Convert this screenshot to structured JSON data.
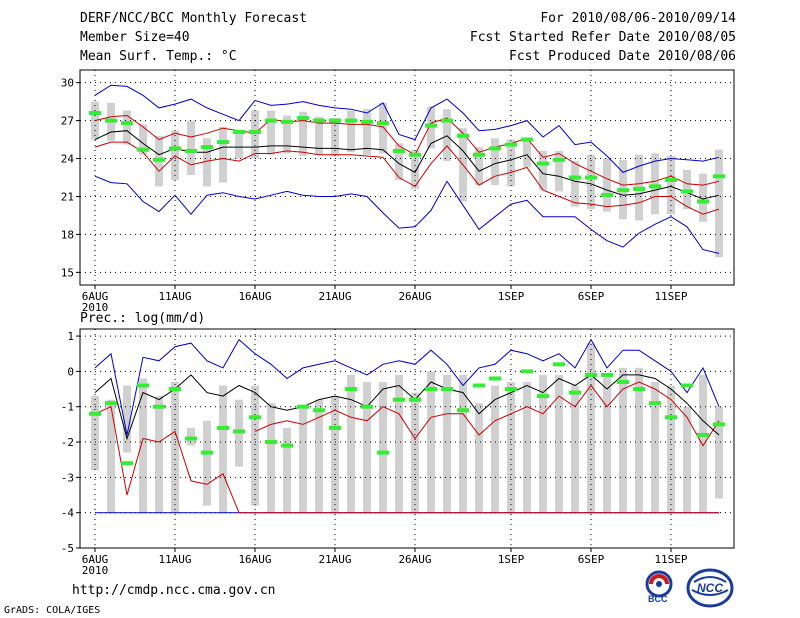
{
  "header": {
    "title": "DERF/NCC/BCC Monthly Forecast",
    "member": "Member Size=40",
    "variable": "Mean Surf. Temp.: °C",
    "period": "For 2010/08/06-2010/09/14",
    "started": "Fcst Started Refer Date 2010/08/05",
    "produced": "Fcst Produced Date 2010/08/06"
  },
  "footer": {
    "url": "http://cmdp.ncc.cma.gov.cn",
    "credit": "GrADS: COLA/IGES",
    "logo_bcc": "BCC",
    "logo_ncc": "NCC"
  },
  "x_labels": [
    "6AUG",
    "11AUG",
    "16AUG",
    "21AUG",
    "26AUG",
    "1SEP",
    "6SEP",
    "11SEP"
  ],
  "x_label_days": [
    1,
    6,
    11,
    16,
    21,
    27,
    32,
    37
  ],
  "x_year": "2010",
  "colors": {
    "grid": "#000000",
    "bar": "#d0d0d0",
    "green": "#33ee33",
    "blue": "#0000cc",
    "red": "#cc0000",
    "black": "#000000"
  },
  "chart_data": [
    {
      "type": "box-ensemble",
      "title": "Mean Surf. Temp.: °C",
      "ylabel": "",
      "ylim": [
        14,
        31
      ],
      "yticks": [
        15,
        18,
        21,
        24,
        27,
        30
      ],
      "days": 40,
      "max": [
        29.0,
        29.8,
        29.7,
        29.0,
        28.0,
        28.3,
        28.7,
        28.0,
        27.5,
        27.0,
        28.6,
        28.2,
        28.3,
        28.5,
        28.2,
        28.0,
        27.9,
        27.6,
        28.4,
        25.9,
        25.5,
        28.0,
        28.7,
        27.6,
        26.2,
        26.3,
        26.6,
        27.0,
        25.7,
        26.6,
        25.1,
        25.3,
        24.2,
        22.9,
        23.4,
        23.8,
        24.0,
        23.9,
        23.8,
        24.1
      ],
      "p90": [
        27.0,
        27.3,
        27.4,
        26.5,
        25.5,
        26.0,
        25.7,
        26.0,
        26.4,
        26.2,
        26.0,
        27.1,
        26.9,
        27.0,
        26.8,
        26.8,
        26.7,
        26.7,
        26.5,
        25.0,
        24.3,
        26.8,
        27.2,
        26.0,
        24.5,
        24.9,
        25.2,
        25.6,
        24.1,
        24.4,
        23.6,
        23.0,
        22.4,
        21.9,
        22.0,
        22.2,
        22.6,
        22.0,
        21.9,
        22.2
      ],
      "mean": [
        25.5,
        26.1,
        26.2,
        25.2,
        24.3,
        24.8,
        24.5,
        24.5,
        24.9,
        24.9,
        24.9,
        25.0,
        25.0,
        24.9,
        24.8,
        24.8,
        24.7,
        24.8,
        24.7,
        23.6,
        22.9,
        25.2,
        25.8,
        24.6,
        23.0,
        23.6,
        23.9,
        24.3,
        22.8,
        22.6,
        22.2,
        22.0,
        21.5,
        21.1,
        21.2,
        21.5,
        21.8,
        21.3,
        20.8,
        21.1
      ],
      "p10": [
        24.9,
        25.3,
        25.3,
        24.5,
        23.0,
        24.2,
        23.5,
        23.8,
        24.0,
        23.8,
        24.4,
        24.4,
        24.6,
        24.5,
        24.3,
        24.3,
        24.3,
        24.2,
        24.1,
        22.5,
        21.8,
        23.6,
        25.0,
        23.5,
        21.9,
        22.6,
        22.9,
        23.3,
        21.5,
        21.0,
        20.5,
        20.4,
        20.2,
        20.3,
        20.5,
        21.0,
        21.0,
        20.2,
        19.6,
        20.0
      ],
      "min": [
        22.6,
        22.1,
        22.0,
        20.6,
        19.8,
        21.1,
        19.6,
        21.1,
        21.3,
        21.0,
        20.8,
        21.1,
        21.4,
        21.1,
        21.0,
        21.0,
        21.2,
        21.0,
        19.7,
        18.5,
        18.6,
        19.9,
        22.2,
        20.3,
        18.4,
        19.4,
        20.4,
        20.7,
        19.4,
        19.4,
        19.4,
        18.4,
        17.5,
        17.0,
        18.1,
        18.8,
        19.4,
        18.6,
        16.8,
        16.5
      ],
      "box_high": [
        28.5,
        28.4,
        27.8,
        26.7,
        25.8,
        26.2,
        27.0,
        25.6,
        26.5,
        26.2,
        27.8,
        27.8,
        27.4,
        27.7,
        27.3,
        27.2,
        27.8,
        27.9,
        28.4,
        25.2,
        24.7,
        28.1,
        27.9,
        26.4,
        24.9,
        25.6,
        25.5,
        25.6,
        24.6,
        24.6,
        23.8,
        24.3,
        24.0,
        23.9,
        24.3,
        24.4,
        24.2,
        23.1,
        22.8,
        24.7
      ],
      "box_low": [
        25.5,
        25.4,
        25.1,
        24.3,
        21.8,
        22.3,
        22.7,
        21.8,
        22.1,
        24.0,
        24.0,
        24.3,
        24.4,
        24.2,
        24.3,
        24.2,
        24.5,
        24.3,
        24.4,
        22.3,
        21.6,
        24.8,
        23.8,
        20.6,
        21.9,
        21.9,
        21.8,
        23.3,
        21.5,
        21.4,
        20.2,
        20.0,
        19.8,
        19.2,
        19.1,
        19.6,
        19.6,
        20.0,
        19.0,
        16.2
      ],
      "green": [
        27.6,
        27.0,
        26.8,
        24.7,
        23.9,
        24.8,
        24.6,
        24.9,
        25.3,
        26.1,
        26.1,
        27.0,
        26.9,
        27.2,
        27.0,
        27.0,
        27.0,
        26.9,
        26.8,
        24.6,
        24.3,
        26.6,
        27.0,
        25.8,
        24.3,
        24.8,
        25.1,
        25.5,
        23.6,
        23.9,
        22.5,
        22.5,
        21.1,
        21.5,
        21.6,
        21.8,
        22.3,
        21.4,
        20.6,
        22.6
      ]
    },
    {
      "type": "box-ensemble",
      "title": "Prec.: log(mm/d)",
      "ylabel": "",
      "ylim": [
        -5,
        1.2
      ],
      "yticks": [
        -5,
        -4,
        -3,
        -2,
        -1,
        0,
        1
      ],
      "days": 40,
      "max": [
        0.1,
        0.5,
        -1.8,
        0.4,
        0.3,
        0.7,
        0.8,
        0.3,
        0.1,
        0.9,
        0.5,
        0.2,
        -0.2,
        0.1,
        0.2,
        0.3,
        0.1,
        -0.1,
        0.2,
        0.3,
        0.2,
        0.6,
        0.2,
        -0.4,
        0.1,
        0.2,
        0.6,
        0.5,
        0.3,
        0.5,
        0.1,
        0.9,
        0.1,
        0.6,
        0.6,
        0.3,
        0.0,
        -0.6,
        0.1,
        -1.0
      ],
      "mean": [
        -0.6,
        -0.2,
        -1.9,
        -0.6,
        -0.8,
        -0.5,
        -0.1,
        -0.6,
        -0.7,
        -0.4,
        -0.6,
        -1.0,
        -1.1,
        -1.0,
        -0.8,
        -0.7,
        -0.8,
        -1.0,
        -0.5,
        -0.4,
        -0.8,
        -0.3,
        -0.5,
        -0.6,
        -1.2,
        -0.8,
        -0.6,
        -0.4,
        -0.6,
        -0.2,
        -0.4,
        -0.1,
        -0.5,
        -0.1,
        -0.1,
        -0.2,
        -0.5,
        -0.9,
        -1.4,
        -1.8
      ],
      "p10": [
        -1.2,
        -1.0,
        -3.5,
        -1.9,
        -2.0,
        -1.7,
        -3.1,
        -3.2,
        -2.9,
        -4.0,
        -4.2,
        -4.6,
        -5.0,
        -5.0,
        -5.0,
        -5.0,
        -5.0,
        -5.0,
        -5.0,
        -5.0,
        -5.0,
        -5.0,
        -5.0,
        -5.0,
        -5.0,
        -5.0,
        -5.0,
        -5.0,
        -5.0,
        -5.0,
        -5.0,
        -5.0,
        -5.0,
        -5.0,
        -5.0,
        -5.0,
        -5.0,
        -5.0,
        -5.0,
        -5.0
      ],
      "p10_visible": [
        -1.2,
        -1.0,
        -3.5,
        -1.9,
        -2.0,
        -1.7,
        -3.1,
        -3.2,
        -2.9,
        -4.0,
        -4.0,
        -4.0,
        -4.0,
        -4.0,
        -4.0,
        -4.0,
        -4.0,
        -4.0,
        -4.0,
        -4.0,
        -4.0,
        -4.0,
        -4.0,
        -4.0,
        -4.0,
        -4.0,
        -4.0,
        -4.0,
        -4.0,
        -4.0,
        -4.0,
        -4.0,
        -4.0,
        -4.0,
        -4.0,
        -4.0,
        -4.0,
        -4.0,
        -4.0,
        -4.0
      ],
      "red": [
        -1.2,
        -1.0,
        -3.5,
        -1.9,
        -2.0,
        -1.7,
        -3.1,
        -3.2,
        -2.9,
        -4.0,
        -1.7,
        -1.5,
        -1.4,
        -1.5,
        -1.3,
        -1.1,
        -1.3,
        -1.4,
        -1.0,
        -1.2,
        -1.9,
        -1.3,
        -1.2,
        -1.2,
        -1.8,
        -1.4,
        -1.2,
        -1.0,
        -1.2,
        -0.7,
        -1.0,
        -0.4,
        -1.0,
        -0.5,
        -0.3,
        -0.5,
        -0.8,
        -1.3,
        -2.1,
        -1.4
      ],
      "min": [
        -4.0,
        -4.0,
        -4.0,
        -4.0,
        -4.0,
        -4.0,
        -4.0,
        -4.0,
        -4.0,
        -4.0,
        -4.0,
        -4.0,
        -4.0,
        -4.0,
        -4.0,
        -4.0,
        -4.0,
        -4.0,
        -4.0,
        -4.0,
        -4.0,
        -4.0,
        -4.0,
        -4.0,
        -4.0,
        -4.0,
        -4.0,
        -4.0,
        -4.0,
        -4.0,
        -4.0,
        -4.0,
        -4.0,
        -4.0,
        -4.0,
        -4.0,
        -4.0,
        -4.0,
        -4.0,
        -4.0
      ],
      "box_high": [
        -0.7,
        -0.8,
        -0.4,
        -0.2,
        -0.7,
        -0.3,
        -1.6,
        -1.4,
        -0.4,
        -0.8,
        -0.4,
        -0.9,
        -1.6,
        -1.0,
        -0.8,
        -0.7,
        -0.1,
        -0.3,
        -0.3,
        -0.1,
        -0.6,
        0.0,
        -0.1,
        -0.1,
        -0.9,
        -0.4,
        -0.3,
        -0.3,
        -0.1,
        -0.1,
        -0.4,
        0.8,
        -0.1,
        0.1,
        0.1,
        -0.3,
        -0.4,
        -1.0,
        -0.1,
        -1.0
      ],
      "box_low": [
        -2.8,
        -4.0,
        -2.3,
        -4.0,
        -4.0,
        -4.0,
        -2.1,
        -3.8,
        -4.0,
        -2.7,
        -3.8,
        -4.0,
        -4.0,
        -4.0,
        -4.0,
        -4.0,
        -4.0,
        -4.0,
        -4.0,
        -4.0,
        -4.0,
        -4.0,
        -4.0,
        -4.0,
        -4.0,
        -4.0,
        -4.0,
        -4.0,
        -4.0,
        -4.0,
        -4.0,
        -4.0,
        -4.0,
        -4.0,
        -4.0,
        -4.0,
        -4.0,
        -4.0,
        -4.0,
        -3.6
      ],
      "green": [
        -1.2,
        -0.9,
        -2.6,
        -0.4,
        -1.0,
        -0.5,
        -1.9,
        -2.3,
        -1.6,
        -1.7,
        -1.3,
        -2.0,
        -2.1,
        -1.0,
        -1.1,
        -1.6,
        -0.5,
        -1.0,
        -2.3,
        -0.8,
        -0.8,
        -0.5,
        -0.5,
        -1.1,
        -0.4,
        -0.2,
        -0.5,
        0.0,
        -0.7,
        0.2,
        -0.6,
        -0.1,
        -0.1,
        -0.3,
        -0.5,
        -0.9,
        -1.3,
        -0.4,
        -1.8,
        -1.5
      ]
    }
  ]
}
